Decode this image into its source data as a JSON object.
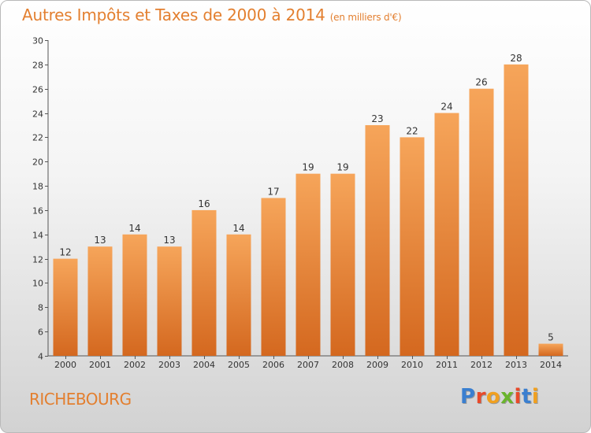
{
  "header": {
    "title": "Autres Impôts et Taxes de 2000 à 2014",
    "unit": "(en milliers d'€)"
  },
  "footer": {
    "place": "RICHEBOURG",
    "logo_text": "Proxiti",
    "logo_colors": [
      "#3a7fd0",
      "#e84a2a",
      "#f0a020",
      "#6ab42d",
      "#e84a2a",
      "#3a7fd0",
      "#f0a020"
    ]
  },
  "colors": {
    "accent": "#e37f2f",
    "bar_top": "#f6a55a",
    "bar_bottom": "#d4681f"
  },
  "chart_data": {
    "type": "bar",
    "title": "Autres Impôts et Taxes de 2000 à 2014",
    "subtitle": "(en milliers d'€)",
    "categories": [
      "2000",
      "2001",
      "2002",
      "2003",
      "2004",
      "2005",
      "2006",
      "2007",
      "2008",
      "2009",
      "2010",
      "2011",
      "2012",
      "2013",
      "2014"
    ],
    "values": [
      12,
      13,
      14,
      13,
      16,
      14,
      17,
      19,
      19,
      23,
      22,
      24,
      26,
      28,
      5
    ],
    "ylim": [
      4,
      30
    ],
    "yticks": [
      4,
      6,
      8,
      10,
      12,
      14,
      16,
      18,
      20,
      22,
      24,
      26,
      28,
      30
    ],
    "xlabel": "",
    "ylabel": "",
    "grid": false
  }
}
